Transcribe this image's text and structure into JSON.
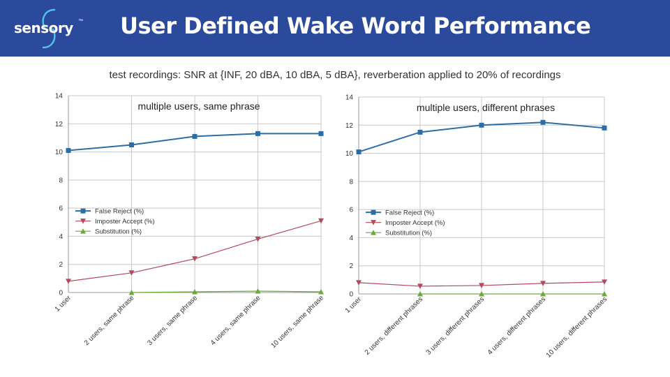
{
  "header": {
    "logo_text": "sensory",
    "logo_tm": "™",
    "title": "User Defined Wake Word Performance",
    "bg_color": "#2b4a9b"
  },
  "subtitle": "test recordings: SNR at {INF, 20 dBA, 10 dBA, 5 dBA}, reverberation applied to 20% of recordings",
  "chart_data": [
    {
      "type": "line",
      "title": "multiple users, same phrase",
      "categories": [
        "1 user",
        "2 users, same phrase",
        "3 users, same phrase",
        "4 users, same phrase",
        "10 users, same phrase"
      ],
      "ylim": [
        0,
        14
      ],
      "yticks": [
        0,
        2,
        4,
        6,
        8,
        10,
        12,
        14
      ],
      "grid": true,
      "legend": "middle-left",
      "series": [
        {
          "name": "False Reject (%)",
          "color": "#2e6da4",
          "marker": "square",
          "values": [
            10.1,
            10.5,
            11.1,
            11.3,
            11.3
          ]
        },
        {
          "name": "Imposter Accept (%)",
          "color": "#b5475f",
          "marker": "triangle-down",
          "values": [
            0.8,
            1.4,
            2.4,
            3.8,
            5.1
          ]
        },
        {
          "name": "Substitution (%)",
          "color": "#6aaa3a",
          "marker": "triangle-up",
          "values": [
            null,
            0.0,
            0.05,
            0.1,
            0.05
          ]
        }
      ]
    },
    {
      "type": "line",
      "title": "multiple users, different phrases",
      "categories": [
        "1 user",
        "2 users, different phrases",
        "3 users, different phrases",
        "4 users, different phrases",
        "10 users, different phrases"
      ],
      "ylim": [
        0,
        14
      ],
      "yticks": [
        0,
        2,
        4,
        6,
        8,
        10,
        12,
        14
      ],
      "grid": true,
      "legend": "middle-left",
      "series": [
        {
          "name": "False Reject (%)",
          "color": "#2e6da4",
          "marker": "square",
          "values": [
            10.1,
            11.5,
            12.0,
            12.2,
            11.8
          ]
        },
        {
          "name": "Imposter Accept (%)",
          "color": "#b5475f",
          "marker": "triangle-down",
          "values": [
            0.8,
            0.55,
            0.6,
            0.75,
            0.85
          ]
        },
        {
          "name": "Substitution (%)",
          "color": "#6aaa3a",
          "marker": "triangle-up",
          "values": [
            null,
            0.0,
            0.0,
            0.0,
            0.0
          ]
        }
      ]
    }
  ]
}
